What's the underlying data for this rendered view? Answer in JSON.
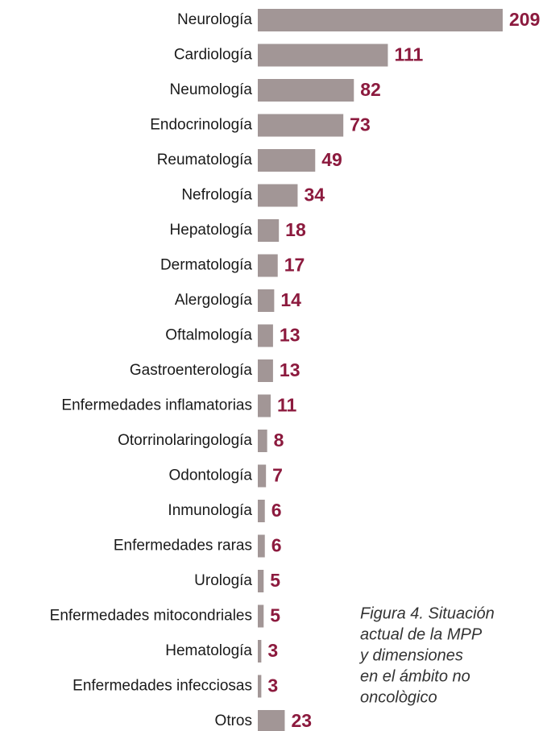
{
  "chart_data": {
    "type": "bar",
    "orientation": "horizontal",
    "categories": [
      "Neurología",
      "Cardiología",
      "Neumología",
      "Endocrinología",
      "Reumatología",
      "Nefrología",
      "Hepatología",
      "Dermatología",
      "Alergología",
      "Oftalmología",
      "Gastroenterología",
      "Enfermedades inflamatorias",
      "Otorrinolaringología",
      "Odontología",
      "Inmunología",
      "Enfermedades raras",
      "Urología",
      "Enfermedades mitocondriales",
      "Hematología",
      "Enfermedades infecciosas",
      "Otros"
    ],
    "values": [
      209,
      111,
      82,
      73,
      49,
      34,
      18,
      17,
      14,
      13,
      13,
      11,
      8,
      7,
      6,
      6,
      5,
      5,
      3,
      3,
      23
    ],
    "color": "#a29696",
    "label_color": "#8c1a3e",
    "caption": [
      "Figura 4. Situación",
      "actual de la MPP",
      "y dimensiones",
      "en el ámbito no",
      "oncològico"
    ]
  }
}
